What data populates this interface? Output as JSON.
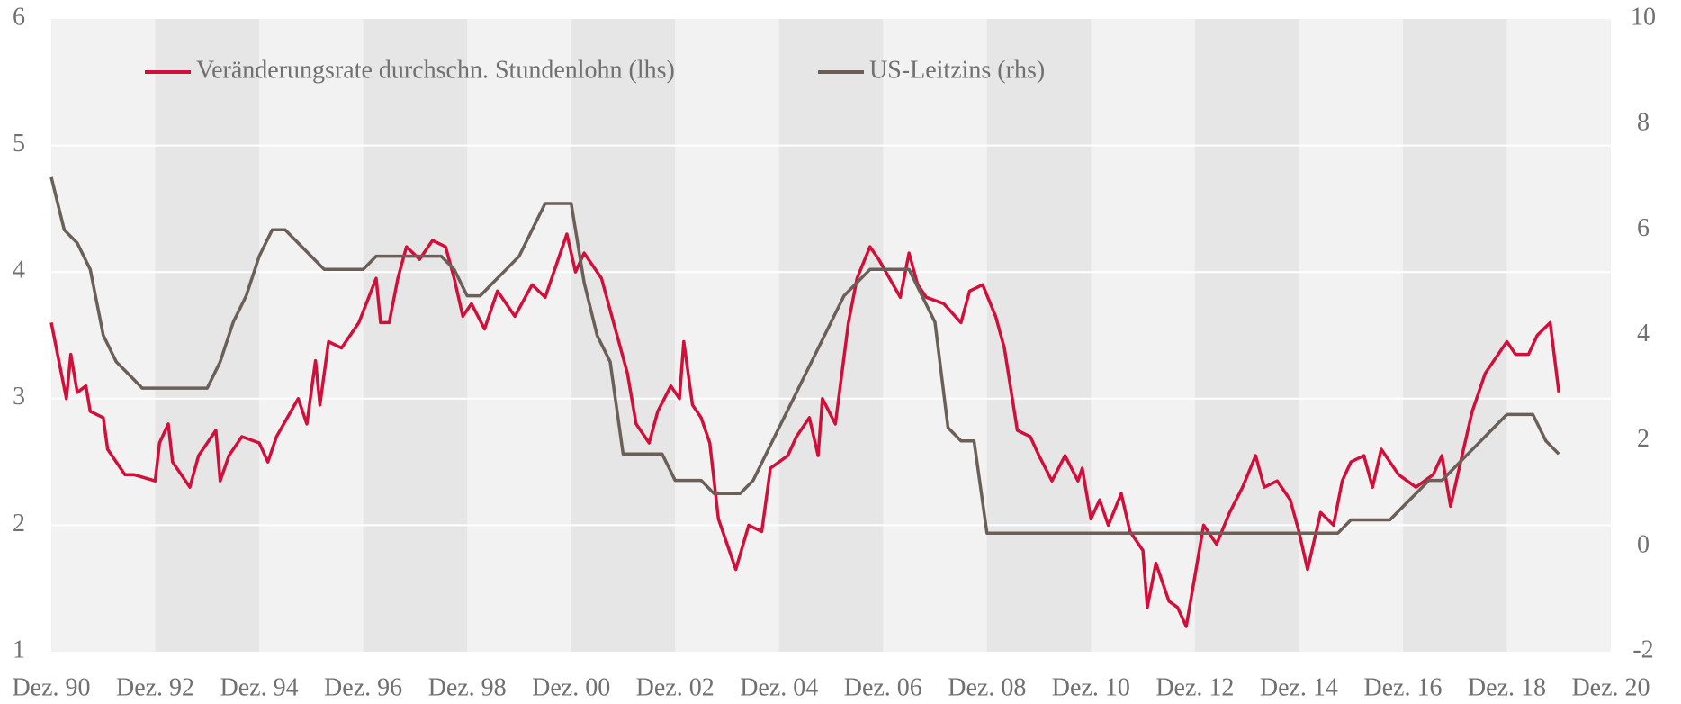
{
  "chart_data": {
    "type": "line",
    "series": [
      {
        "name": "Veränderungsrate durchschn. Stundenlohn (lhs)",
        "color": "#d0103a",
        "axis": "y",
        "x": [
          0,
          3.5,
          4.5,
          6,
          8,
          9,
          12,
          13,
          17,
          19,
          24,
          25,
          27,
          28,
          32,
          34,
          38,
          39,
          41,
          44,
          48,
          50,
          52,
          57,
          59,
          61,
          62,
          64,
          67,
          71,
          75,
          76,
          78,
          80,
          82,
          85,
          88,
          91,
          93,
          95,
          97,
          100,
          103,
          107,
          111,
          114,
          119,
          121,
          123,
          127,
          129,
          133,
          135,
          138,
          140,
          143,
          145,
          146,
          148,
          150,
          152,
          154,
          156,
          158,
          161,
          164,
          166,
          170,
          172,
          175,
          177,
          178,
          181,
          184,
          186,
          189,
          191,
          196,
          198,
          200,
          202,
          206,
          210,
          212,
          215,
          218,
          220,
          223,
          226,
          228,
          231,
          234,
          237,
          238,
          240,
          242,
          244,
          247,
          249,
          252,
          253,
          255,
          258,
          260,
          262,
          264,
          266,
          269,
          272,
          275,
          278,
          280,
          283,
          286,
          288,
          290,
          293,
          296,
          298,
          300,
          303,
          305,
          307,
          311,
          315,
          319,
          321,
          323,
          327,
          328,
          331,
          333,
          336,
          338,
          341,
          343,
          346,
          348
        ],
        "values": [
          3.6,
          3.0,
          3.35,
          3.05,
          3.1,
          2.9,
          2.85,
          2.6,
          2.4,
          2.4,
          2.35,
          2.65,
          2.8,
          2.5,
          2.3,
          2.55,
          2.75,
          2.35,
          2.55,
          2.7,
          2.65,
          2.5,
          2.7,
          3.0,
          2.8,
          3.3,
          2.95,
          3.45,
          3.4,
          3.6,
          3.95,
          3.6,
          3.6,
          3.95,
          4.2,
          4.1,
          4.25,
          4.2,
          3.95,
          3.65,
          3.75,
          3.55,
          3.85,
          3.65,
          3.9,
          3.8,
          4.3,
          4.0,
          4.15,
          3.95,
          3.7,
          3.2,
          2.8,
          2.65,
          2.9,
          3.1,
          3.0,
          3.45,
          2.95,
          2.85,
          2.65,
          2.05,
          1.85,
          1.65,
          2.0,
          1.95,
          2.45,
          2.55,
          2.7,
          2.85,
          2.55,
          3.0,
          2.8,
          3.6,
          3.95,
          4.2,
          4.1,
          3.8,
          4.15,
          3.9,
          3.8,
          3.75,
          3.6,
          3.85,
          3.9,
          3.65,
          3.4,
          2.75,
          2.7,
          2.55,
          2.35,
          2.55,
          2.35,
          2.45,
          2.05,
          2.2,
          2.0,
          2.25,
          1.95,
          1.8,
          1.35,
          1.7,
          1.4,
          1.35,
          1.2,
          1.6,
          2.0,
          1.85,
          2.1,
          2.3,
          2.55,
          2.3,
          2.35,
          2.2,
          1.95,
          1.65,
          2.1,
          2.0,
          2.35,
          2.5,
          2.55,
          2.3,
          2.6,
          2.4,
          2.3,
          2.4,
          2.55,
          2.15,
          2.75,
          2.9,
          3.2,
          3.3,
          3.45,
          3.35,
          3.35,
          3.5,
          3.6,
          3.05
        ]
      },
      {
        "name": "US-Leitzins (rhs)",
        "color": "#6b5f58",
        "axis": "y2",
        "x": [
          0,
          3,
          6,
          9,
          12,
          15,
          18,
          21,
          24,
          27,
          30,
          33,
          36,
          39,
          42,
          45,
          48,
          51,
          54,
          57,
          60,
          63,
          66,
          69,
          72,
          75,
          78,
          81,
          84,
          87,
          90,
          93,
          96,
          99,
          102,
          105,
          108,
          111,
          114,
          117,
          120,
          123,
          126,
          129,
          132,
          135,
          138,
          141,
          144,
          147,
          150,
          153,
          156,
          159,
          162,
          165,
          168,
          171,
          174,
          177,
          180,
          183,
          186,
          189,
          192,
          195,
          198,
          201,
          204,
          207,
          210,
          213,
          216,
          219,
          222,
          225,
          228,
          231,
          234,
          237,
          240,
          243,
          246,
          249,
          252,
          255,
          258,
          261,
          264,
          267,
          270,
          273,
          276,
          279,
          282,
          285,
          288,
          291,
          294,
          297,
          300,
          303,
          306,
          309,
          312,
          315,
          318,
          321,
          324,
          327,
          330,
          333,
          336,
          339,
          342,
          345,
          348
        ],
        "values": [
          7.0,
          6.0,
          5.75,
          5.25,
          4.0,
          3.5,
          3.25,
          3.0,
          3.0,
          3.0,
          3.0,
          3.0,
          3.0,
          3.5,
          4.25,
          4.75,
          5.5,
          6.0,
          6.0,
          5.75,
          5.5,
          5.25,
          5.25,
          5.25,
          5.25,
          5.5,
          5.5,
          5.5,
          5.5,
          5.5,
          5.5,
          5.25,
          4.75,
          4.75,
          5.0,
          5.25,
          5.5,
          6.0,
          6.5,
          6.5,
          6.5,
          5.0,
          4.0,
          3.5,
          1.75,
          1.75,
          1.75,
          1.75,
          1.25,
          1.25,
          1.25,
          1.0,
          1.0,
          1.0,
          1.25,
          1.75,
          2.25,
          2.75,
          3.25,
          3.75,
          4.25,
          4.75,
          5.0,
          5.25,
          5.25,
          5.25,
          5.25,
          4.75,
          4.25,
          2.25,
          2.0,
          2.0,
          0.25,
          0.25,
          0.25,
          0.25,
          0.25,
          0.25,
          0.25,
          0.25,
          0.25,
          0.25,
          0.25,
          0.25,
          0.25,
          0.25,
          0.25,
          0.25,
          0.25,
          0.25,
          0.25,
          0.25,
          0.25,
          0.25,
          0.25,
          0.25,
          0.25,
          0.25,
          0.25,
          0.25,
          0.5,
          0.5,
          0.5,
          0.5,
          0.75,
          1.0,
          1.25,
          1.25,
          1.5,
          1.75,
          2.0,
          2.25,
          2.5,
          2.5,
          2.5,
          2.0,
          1.75
        ]
      }
    ],
    "xlim": [
      0,
      360
    ],
    "xticks": [
      {
        "value": 0,
        "label": "Dez. 90"
      },
      {
        "value": 24,
        "label": "Dez. 92"
      },
      {
        "value": 48,
        "label": "Dez. 94"
      },
      {
        "value": 72,
        "label": "Dez. 96"
      },
      {
        "value": 96,
        "label": "Dez. 98"
      },
      {
        "value": 120,
        "label": "Dez. 00"
      },
      {
        "value": 144,
        "label": "Dez. 02"
      },
      {
        "value": 168,
        "label": "Dez. 04"
      },
      {
        "value": 192,
        "label": "Dez. 06"
      },
      {
        "value": 216,
        "label": "Dez. 08"
      },
      {
        "value": 240,
        "label": "Dez. 10"
      },
      {
        "value": 264,
        "label": "Dez. 12"
      },
      {
        "value": 288,
        "label": "Dez. 14"
      },
      {
        "value": 312,
        "label": "Dez. 16"
      },
      {
        "value": 336,
        "label": "Dez. 18"
      },
      {
        "value": 360,
        "label": "Dez. 20"
      }
    ],
    "ylim": [
      1,
      6
    ],
    "yticks": [
      1,
      2,
      3,
      4,
      5,
      6
    ],
    "y2lim": [
      -2,
      10
    ],
    "y2ticks": [
      -2,
      0,
      2,
      4,
      6,
      8,
      10
    ],
    "grid": true,
    "legend": "top-left"
  }
}
